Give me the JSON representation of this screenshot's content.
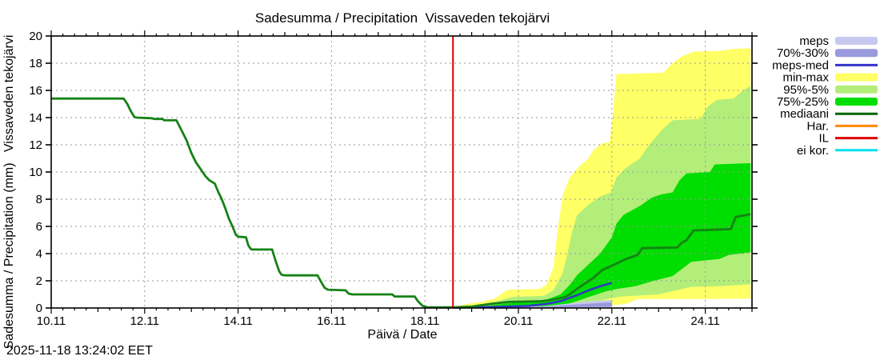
{
  "chart_data": {
    "type": "area",
    "title": "Sadesumma / Precipitation  Vissaveden tekojärvi",
    "xlabel": "Päivä / Date",
    "ylabel": "Sadesumma / Precipitation (mm)   Vissaveden tekojärvi",
    "timestamp": "2025-11-18 13:24:02 EET",
    "ylim": [
      0,
      20
    ],
    "x_domain_days": [
      10,
      25
    ],
    "month_suffix": ".11",
    "grid": true,
    "legend_position": "right-outside",
    "yticks": [
      0,
      2,
      4,
      6,
      8,
      10,
      12,
      14,
      16,
      18,
      20
    ],
    "xticks": [
      {
        "day": 10,
        "label": "10.11"
      },
      {
        "day": 12,
        "label": "12.11"
      },
      {
        "day": 14,
        "label": "14.11"
      },
      {
        "day": 16,
        "label": "16.11"
      },
      {
        "day": 18,
        "label": "18.11"
      },
      {
        "day": 20,
        "label": "20.11"
      },
      {
        "day": 22,
        "label": "22.11"
      },
      {
        "day": 24,
        "label": "24.11"
      }
    ],
    "forecast_start_day": 18.6,
    "colors": {
      "frame": "#000000",
      "grid": "#999999",
      "background": "#ffffff",
      "forecast_start_line": "#dd0000",
      "history_line": "#168216",
      "meps_band": "#c8c8f0",
      "meps7030_band": "#9999dd",
      "meps_med_line": "#3333cc",
      "minmax_band": "#ffff66",
      "p95_band": "#b3ee7a",
      "p75_band": "#00dd00",
      "median_line_legend": "#006400",
      "har_line": "#ff8800",
      "il_line": "#dd0000",
      "eikor_line": "#00e0f0"
    },
    "bands": [
      {
        "name": "min-max",
        "color": "#ffff66",
        "upper": [
          [
            18.6,
            0.05
          ],
          [
            18.9,
            0.3
          ],
          [
            19.2,
            0.45
          ],
          [
            19.5,
            0.7
          ],
          [
            19.7,
            1.2
          ],
          [
            19.8,
            1.35
          ],
          [
            20.45,
            1.4
          ],
          [
            20.6,
            1.7
          ],
          [
            20.75,
            3.0
          ],
          [
            20.85,
            6.0
          ],
          [
            20.95,
            8.3
          ],
          [
            21.1,
            9.6
          ],
          [
            21.3,
            10.4
          ],
          [
            21.5,
            11.0
          ],
          [
            21.6,
            11.6
          ],
          [
            21.8,
            12.1
          ],
          [
            21.95,
            12.2
          ],
          [
            22.0,
            13.5
          ],
          [
            22.1,
            17.2
          ],
          [
            23.1,
            17.3
          ],
          [
            23.3,
            18.0
          ],
          [
            23.5,
            18.5
          ],
          [
            23.75,
            18.85
          ],
          [
            24.3,
            18.9
          ],
          [
            24.6,
            19.05
          ],
          [
            24.97,
            19.1
          ]
        ],
        "lower": [
          [
            18.6,
            0.0
          ],
          [
            21.5,
            0.05
          ],
          [
            22.3,
            0.3
          ],
          [
            22.55,
            0.65
          ],
          [
            24.97,
            0.68
          ]
        ]
      },
      {
        "name": "95%-5%",
        "color": "#b3ee7a",
        "upper": [
          [
            18.6,
            0.03
          ],
          [
            19.1,
            0.2
          ],
          [
            19.5,
            0.45
          ],
          [
            19.85,
            0.8
          ],
          [
            20.55,
            0.9
          ],
          [
            20.75,
            1.3
          ],
          [
            20.95,
            2.6
          ],
          [
            21.05,
            4.0
          ],
          [
            21.15,
            5.6
          ],
          [
            21.25,
            6.8
          ],
          [
            21.5,
            7.6
          ],
          [
            21.75,
            8.2
          ],
          [
            21.98,
            8.5
          ],
          [
            22.1,
            9.6
          ],
          [
            22.3,
            10.3
          ],
          [
            22.6,
            11.0
          ],
          [
            22.8,
            12.0
          ],
          [
            23.1,
            13.2
          ],
          [
            23.3,
            13.8
          ],
          [
            23.9,
            13.9
          ],
          [
            24.05,
            14.8
          ],
          [
            24.25,
            15.3
          ],
          [
            24.6,
            15.4
          ],
          [
            24.85,
            16.1
          ],
          [
            24.97,
            16.3
          ]
        ],
        "lower": [
          [
            18.6,
            0.0
          ],
          [
            20.8,
            0.05
          ],
          [
            21.2,
            0.2
          ],
          [
            21.6,
            0.45
          ],
          [
            21.95,
            0.7
          ],
          [
            22.2,
            0.85
          ],
          [
            23.0,
            1.0
          ],
          [
            23.5,
            1.4
          ],
          [
            23.7,
            1.55
          ],
          [
            24.3,
            1.6
          ],
          [
            24.97,
            1.75
          ]
        ]
      },
      {
        "name": "75%-25%",
        "color": "#00dd00",
        "upper": [
          [
            18.6,
            0.02
          ],
          [
            19.3,
            0.15
          ],
          [
            19.8,
            0.35
          ],
          [
            20.2,
            0.5
          ],
          [
            20.6,
            0.6
          ],
          [
            20.9,
            1.0
          ],
          [
            21.1,
            1.7
          ],
          [
            21.25,
            2.4
          ],
          [
            21.5,
            3.2
          ],
          [
            21.75,
            4.0
          ],
          [
            22.0,
            5.2
          ],
          [
            22.1,
            6.2
          ],
          [
            22.25,
            6.85
          ],
          [
            22.6,
            7.5
          ],
          [
            22.85,
            8.1
          ],
          [
            23.05,
            8.35
          ],
          [
            23.3,
            8.5
          ],
          [
            23.45,
            9.4
          ],
          [
            23.6,
            9.9
          ],
          [
            24.1,
            10.0
          ],
          [
            24.2,
            10.55
          ],
          [
            24.97,
            10.65
          ]
        ],
        "lower": [
          [
            18.6,
            0.0
          ],
          [
            20.3,
            0.05
          ],
          [
            20.9,
            0.15
          ],
          [
            21.2,
            0.45
          ],
          [
            21.5,
            0.8
          ],
          [
            21.85,
            1.2
          ],
          [
            22.1,
            1.4
          ],
          [
            22.5,
            1.6
          ],
          [
            22.9,
            2.0
          ],
          [
            23.3,
            2.35
          ],
          [
            23.55,
            3.0
          ],
          [
            23.7,
            3.4
          ],
          [
            24.3,
            3.6
          ],
          [
            24.5,
            3.9
          ],
          [
            24.97,
            4.1
          ]
        ]
      },
      {
        "name": "meps",
        "color": "#c8c8f0",
        "upper": [
          [
            18.6,
            0.02
          ],
          [
            20.0,
            0.08
          ],
          [
            20.6,
            0.15
          ],
          [
            21.0,
            0.3
          ],
          [
            21.4,
            0.45
          ],
          [
            21.8,
            0.55
          ],
          [
            22.0,
            0.6
          ]
        ],
        "lower": [
          [
            18.6,
            0.0
          ],
          [
            22.0,
            0.0
          ]
        ]
      },
      {
        "name": "70%-30%",
        "color": "#9999dd",
        "upper": [
          [
            18.6,
            0.01
          ],
          [
            20.6,
            0.1
          ],
          [
            21.1,
            0.22
          ],
          [
            21.5,
            0.32
          ],
          [
            22.0,
            0.42
          ]
        ],
        "lower": [
          [
            18.6,
            0.0
          ],
          [
            21.0,
            0.05
          ],
          [
            22.0,
            0.1
          ]
        ]
      }
    ],
    "lines": [
      {
        "name": "meps-med",
        "color": "#3333cc",
        "width": 2.5,
        "points": [
          [
            18.6,
            0.03
          ],
          [
            19.5,
            0.08
          ],
          [
            20.2,
            0.15
          ],
          [
            20.6,
            0.3
          ],
          [
            20.9,
            0.5
          ],
          [
            21.1,
            0.75
          ],
          [
            21.3,
            1.0
          ],
          [
            21.5,
            1.3
          ],
          [
            21.75,
            1.6
          ],
          [
            22.0,
            1.85
          ]
        ]
      },
      {
        "name": "mediaani",
        "color": "#168216",
        "width": 2.8,
        "points": [
          [
            10.0,
            15.4
          ],
          [
            11.55,
            15.4
          ],
          [
            11.63,
            15.0
          ],
          [
            11.7,
            14.5
          ],
          [
            11.78,
            14.05
          ],
          [
            11.83,
            14.0
          ],
          [
            12.15,
            13.95
          ],
          [
            12.2,
            13.9
          ],
          [
            12.38,
            13.9
          ],
          [
            12.42,
            13.8
          ],
          [
            12.68,
            13.8
          ],
          [
            12.8,
            13.0
          ],
          [
            12.9,
            12.3
          ],
          [
            13.0,
            11.4
          ],
          [
            13.1,
            10.7
          ],
          [
            13.2,
            10.2
          ],
          [
            13.3,
            9.7
          ],
          [
            13.38,
            9.4
          ],
          [
            13.5,
            9.15
          ],
          [
            13.58,
            8.5
          ],
          [
            13.65,
            8.0
          ],
          [
            13.73,
            7.3
          ],
          [
            13.8,
            6.6
          ],
          [
            13.88,
            6.0
          ],
          [
            13.95,
            5.4
          ],
          [
            14.0,
            5.25
          ],
          [
            14.17,
            5.2
          ],
          [
            14.22,
            4.6
          ],
          [
            14.27,
            4.35
          ],
          [
            14.3,
            4.3
          ],
          [
            14.73,
            4.3
          ],
          [
            14.8,
            3.5
          ],
          [
            14.88,
            2.7
          ],
          [
            14.93,
            2.45
          ],
          [
            15.0,
            2.4
          ],
          [
            15.7,
            2.4
          ],
          [
            15.78,
            1.9
          ],
          [
            15.85,
            1.5
          ],
          [
            15.92,
            1.35
          ],
          [
            16.3,
            1.3
          ],
          [
            16.37,
            1.05
          ],
          [
            16.45,
            1.0
          ],
          [
            17.3,
            1.0
          ],
          [
            17.35,
            0.85
          ],
          [
            17.78,
            0.85
          ],
          [
            17.85,
            0.5
          ],
          [
            17.95,
            0.15
          ],
          [
            18.05,
            0.05
          ],
          [
            18.6,
            0.05
          ],
          [
            19.0,
            0.1
          ],
          [
            19.4,
            0.3
          ],
          [
            19.8,
            0.45
          ],
          [
            20.5,
            0.5
          ],
          [
            20.8,
            0.65
          ],
          [
            21.0,
            0.8
          ],
          [
            21.1,
            1.0
          ],
          [
            21.25,
            1.4
          ],
          [
            21.47,
            1.9
          ],
          [
            21.6,
            2.2
          ],
          [
            21.8,
            2.8
          ],
          [
            22.0,
            3.1
          ],
          [
            22.3,
            3.6
          ],
          [
            22.55,
            3.9
          ],
          [
            22.65,
            4.4
          ],
          [
            23.4,
            4.45
          ],
          [
            23.5,
            4.8
          ],
          [
            23.6,
            5.0
          ],
          [
            23.75,
            5.7
          ],
          [
            24.55,
            5.8
          ],
          [
            24.65,
            6.7
          ],
          [
            24.97,
            6.9
          ]
        ]
      }
    ],
    "legend": [
      {
        "label": "meps",
        "type": "band",
        "color": "#c8c8f0"
      },
      {
        "label": "70%-30%",
        "type": "band",
        "color": "#9999dd"
      },
      {
        "label": "meps-med",
        "type": "line",
        "color": "#3333cc"
      },
      {
        "label": "min-max",
        "type": "band",
        "color": "#ffff66"
      },
      {
        "label": "95%-5%",
        "type": "band",
        "color": "#b3ee7a"
      },
      {
        "label": "75%-25%",
        "type": "band",
        "color": "#00dd00"
      },
      {
        "label": "mediaani",
        "type": "line",
        "color": "#006400"
      },
      {
        "label": "Har.",
        "type": "line",
        "color": "#ff8800"
      },
      {
        "label": "IL",
        "type": "line",
        "color": "#dd0000"
      },
      {
        "label": "ei kor.",
        "type": "line",
        "color": "#00e0f0"
      }
    ]
  }
}
